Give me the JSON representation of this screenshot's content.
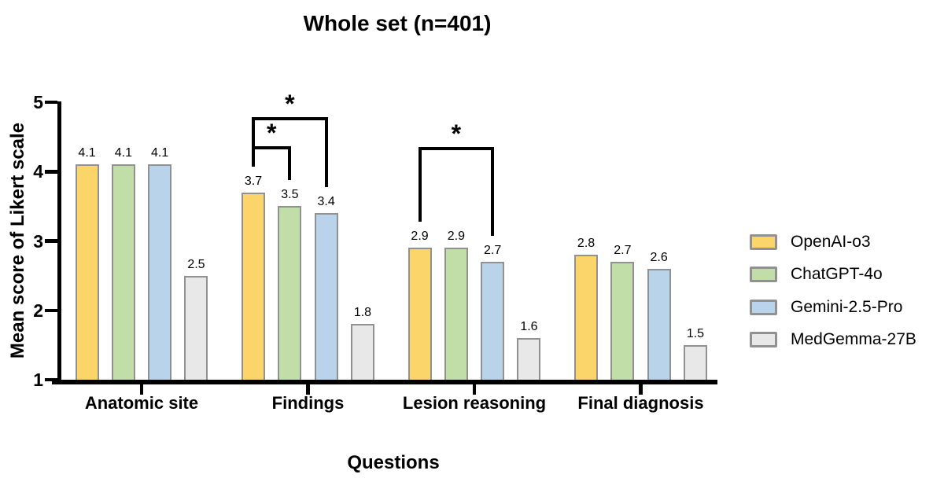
{
  "chart_data": {
    "type": "bar",
    "title": "Whole set (n=401)",
    "xlabel": "Questions",
    "ylabel": "Mean score of Likert scale",
    "categories": [
      "Anatomic site",
      "Findings",
      "Lesion reasoning",
      "Final diagnosis"
    ],
    "series": [
      {
        "name": "OpenAI-o3",
        "color": "#FBD56A",
        "values": [
          4.1,
          3.7,
          2.9,
          2.8
        ]
      },
      {
        "name": "ChatGPT-4o",
        "color": "#C1DDA8",
        "values": [
          4.1,
          3.5,
          2.9,
          2.7
        ]
      },
      {
        "name": "Gemini-2.5-Pro",
        "color": "#B9D4EA",
        "values": [
          4.1,
          3.4,
          2.7,
          2.6
        ]
      },
      {
        "name": "MedGemma-27B",
        "color": "#E8E8E8",
        "values": [
          2.5,
          1.8,
          1.6,
          1.5
        ]
      }
    ],
    "ylim": [
      1,
      5
    ],
    "yticks": [
      1,
      2,
      3,
      4,
      5
    ],
    "value_label_decimals": 1,
    "grid": false,
    "legend_position": "right",
    "bar_border_color": "#919191",
    "axis_color": "#000000",
    "annotations": [
      {
        "type": "significance-bracket",
        "category_index": 1,
        "from_series": 0,
        "to_series": 1,
        "label": "*",
        "top_value": 4.34
      },
      {
        "type": "significance-bracket",
        "category_index": 1,
        "from_series": 0,
        "to_series": 2,
        "label": "*",
        "top_value": 4.76
      },
      {
        "type": "significance-bracket",
        "category_index": 2,
        "from_series": 0,
        "to_series": 2,
        "label": "*",
        "top_value": 4.33
      }
    ]
  }
}
